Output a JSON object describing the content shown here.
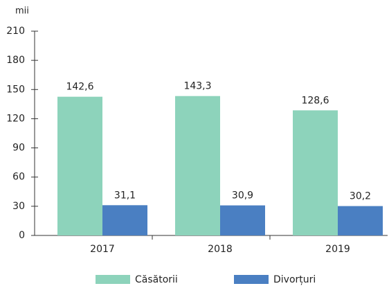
{
  "chart_data": {
    "type": "bar",
    "y_label": "mii",
    "categories": [
      "2017",
      "2018",
      "2019"
    ],
    "series": [
      {
        "name": "Căsătorii",
        "color": "#8dd3bb",
        "values": [
          142.6,
          143.3,
          128.6
        ],
        "value_labels": [
          "142,6",
          "143,3",
          "128,6"
        ]
      },
      {
        "name": "Divorțuri",
        "color": "#4a7fc2",
        "values": [
          31.1,
          30.9,
          30.2
        ],
        "value_labels": [
          "31,1",
          "30,9",
          "30,2"
        ]
      }
    ],
    "ylim": [
      0,
      210
    ],
    "yticks": [
      0,
      30,
      60,
      90,
      120,
      150,
      180,
      210
    ]
  }
}
